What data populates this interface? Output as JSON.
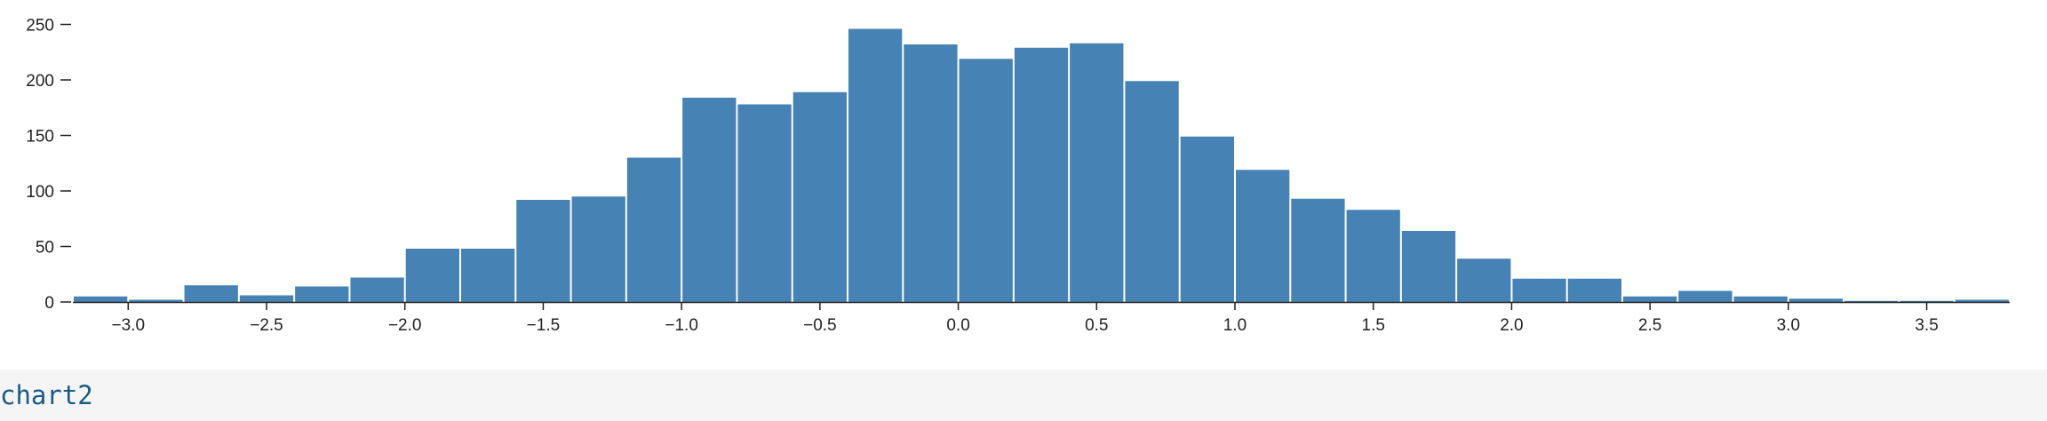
{
  "chart_data": {
    "type": "bar",
    "subtype": "histogram",
    "bin_width": 0.2,
    "bins_start": [
      -3.2,
      -3.0,
      -2.8,
      -2.6,
      -2.4,
      -2.2,
      -2.0,
      -1.8,
      -1.6,
      -1.4,
      -1.2,
      -1.0,
      -0.8,
      -0.6,
      -0.4,
      -0.2,
      0.0,
      0.2,
      0.4,
      0.6,
      0.8,
      1.0,
      1.2,
      1.4,
      1.6,
      1.8,
      2.0,
      2.2,
      2.4,
      2.6,
      2.8,
      3.0,
      3.2,
      3.4,
      3.6
    ],
    "values": [
      5,
      2,
      15,
      6,
      14,
      22,
      48,
      48,
      92,
      95,
      130,
      184,
      178,
      189,
      246,
      232,
      219,
      229,
      233,
      199,
      149,
      119,
      93,
      83,
      64,
      39,
      21,
      21,
      5,
      10,
      5,
      3,
      1,
      1,
      2
    ],
    "bar_color": "#4682b4",
    "xlim": [
      -3.2,
      3.8
    ],
    "ylim": [
      0,
      260
    ],
    "x_ticks": [
      -3.0,
      -2.5,
      -2.0,
      -1.5,
      -1.0,
      -0.5,
      0.0,
      0.5,
      1.0,
      1.5,
      2.0,
      2.5,
      3.0,
      3.5
    ],
    "x_tick_labels": [
      "−3.0",
      "−2.5",
      "−2.0",
      "−1.5",
      "−1.0",
      "−0.5",
      "0.0",
      "0.5",
      "1.0",
      "1.5",
      "2.0",
      "2.5",
      "3.0",
      "3.5"
    ],
    "y_ticks": [
      0,
      50,
      100,
      150,
      200,
      250
    ],
    "y_tick_labels": [
      "0",
      "50",
      "100",
      "150",
      "200",
      "250"
    ],
    "title": "",
    "xlabel": "",
    "ylabel": "",
    "grid": false,
    "legend": "none"
  },
  "cell": {
    "code": "chart2"
  }
}
